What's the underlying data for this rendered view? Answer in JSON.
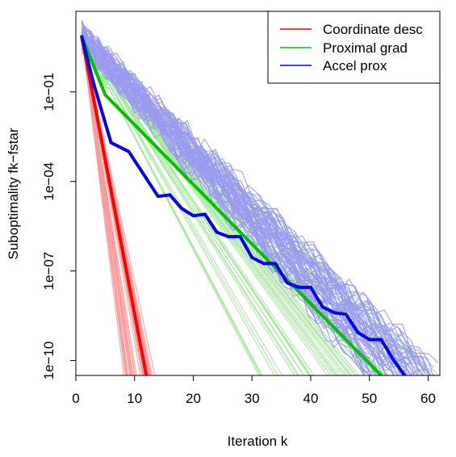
{
  "chart_data": {
    "type": "line",
    "xlabel": "Iteration k",
    "ylabel": "Suboptimality fk−fstar",
    "y_scale": "log10",
    "xlim": [
      0,
      62
    ],
    "ylim_log10": [
      -10.5,
      1.7
    ],
    "grid": false,
    "legend_position": "top-right",
    "x_ticks": [
      0,
      10,
      20,
      30,
      40,
      50,
      60
    ],
    "x_tick_labels": [
      "0",
      "10",
      "20",
      "30",
      "40",
      "50",
      "60"
    ],
    "y_ticks_log10": [
      -1,
      -4,
      -7,
      -10
    ],
    "y_tick_labels": [
      "1e−01",
      "1e−04",
      "1e−07",
      "1e−10"
    ],
    "series": [
      {
        "name": "Coordinate desc",
        "color": "#ff0000",
        "band_color": "#ff9a9a",
        "mean_points": [
          [
            1,
            0.85
          ],
          [
            12,
            -10.5
          ]
        ],
        "band_end_iteration_range": [
          7.5,
          13.5
        ]
      },
      {
        "name": "Proximal grad",
        "color": "#00c000",
        "band_color": "#a8e8a0",
        "mean_points": [
          [
            1,
            0.85
          ],
          [
            5,
            -1.1
          ],
          [
            52,
            -10.5
          ]
        ],
        "band_end_iteration_range": [
          31,
          62
        ]
      },
      {
        "name": "Accel prox",
        "color": "#0000ee",
        "band_color": "#9a9af0",
        "mean_points": [
          [
            1,
            0.85
          ],
          [
            3,
            -0.7
          ],
          [
            6,
            -2.7
          ],
          [
            9,
            -3.0
          ],
          [
            12,
            -3.9
          ],
          [
            14,
            -4.5
          ],
          [
            16,
            -4.45
          ],
          [
            18,
            -4.9
          ],
          [
            20,
            -5.15
          ],
          [
            22,
            -5.1
          ],
          [
            24,
            -5.7
          ],
          [
            26,
            -5.85
          ],
          [
            28,
            -5.85
          ],
          [
            30,
            -6.55
          ],
          [
            32,
            -6.75
          ],
          [
            34,
            -6.75
          ],
          [
            36,
            -7.4
          ],
          [
            38,
            -7.55
          ],
          [
            40,
            -7.55
          ],
          [
            42,
            -8.2
          ],
          [
            44,
            -8.4
          ],
          [
            46,
            -8.45
          ],
          [
            48,
            -9.05
          ],
          [
            50,
            -9.3
          ],
          [
            52,
            -9.3
          ],
          [
            54,
            -9.95
          ],
          [
            56,
            -10.5
          ]
        ],
        "band_end_iteration_range": [
          50,
          62
        ]
      }
    ]
  }
}
